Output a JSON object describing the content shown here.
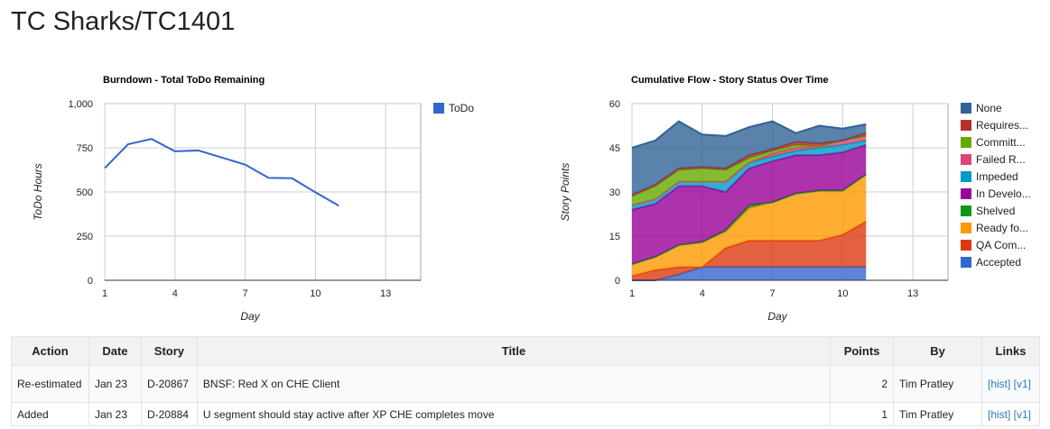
{
  "page": {
    "title": "TC Sharks/TC1401"
  },
  "chart_data": [
    {
      "type": "line",
      "title": "Burndown - Total ToDo Remaining",
      "xlabel": "Day",
      "ylabel": "ToDo Hours",
      "xlim": [
        1,
        14.5
      ],
      "ylim": [
        0,
        1000
      ],
      "xticks": [
        "1",
        "4",
        "7",
        "10",
        "13"
      ],
      "yticks": [
        "0",
        "250",
        "500",
        "750",
        "1,000"
      ],
      "grid": true,
      "legend": "right",
      "series": [
        {
          "name": "ToDo",
          "color": "#3366cc",
          "x": [
            1,
            2,
            3,
            4,
            5,
            6,
            7,
            8,
            9,
            10,
            11
          ],
          "values": [
            635,
            770,
            800,
            730,
            735,
            695,
            655,
            580,
            578,
            498,
            422
          ]
        }
      ]
    },
    {
      "type": "area",
      "stacked": true,
      "title": "Cumulative Flow - Story Status Over Time",
      "xlabel": "Day",
      "ylabel": "Story Points",
      "xlim": [
        1,
        14.5
      ],
      "ylim": [
        0,
        60
      ],
      "xticks": [
        "1",
        "4",
        "7",
        "10",
        "13"
      ],
      "yticks": [
        "0",
        "15",
        "30",
        "45",
        "60"
      ],
      "grid": true,
      "legend": "right",
      "x": [
        1,
        2,
        3,
        4,
        5,
        6,
        7,
        8,
        9,
        10,
        11
      ],
      "series": [
        {
          "name": "Accepted",
          "color": "#3366cc",
          "values": [
            0,
            0,
            2,
            4.5,
            4.5,
            4.5,
            4.5,
            4.5,
            4.5,
            4.5,
            4.5
          ]
        },
        {
          "name": "QA Com...",
          "color": "#dc3912",
          "values": [
            1.5,
            3.5,
            2.5,
            0,
            6.5,
            9,
            9,
            9,
            9,
            11,
            15.5
          ]
        },
        {
          "name": "Ready fo...",
          "color": "#ff9900",
          "values": [
            4,
            4.5,
            7.5,
            8.5,
            5.5,
            11,
            13,
            16,
            17,
            15,
            16
          ]
        },
        {
          "name": "Shelved",
          "color": "#109618",
          "values": [
            0,
            0,
            0,
            0,
            0.5,
            1,
            0,
            0,
            0,
            0,
            0
          ]
        },
        {
          "name": "In Develo...",
          "color": "#990099",
          "values": [
            18.5,
            18,
            20,
            19,
            13,
            12.5,
            14,
            13,
            12,
            13,
            10
          ]
        },
        {
          "name": "Impeded",
          "color": "#0099c6",
          "values": [
            1.5,
            1.5,
            1.5,
            1.5,
            3.5,
            2,
            1.5,
            1.5,
            2.5,
            2.5,
            1.5
          ]
        },
        {
          "name": "Failed R...",
          "color": "#dd4477",
          "values": [
            0,
            0,
            0,
            0,
            0,
            0,
            1,
            1,
            0.5,
            1.5,
            1.5
          ]
        },
        {
          "name": "Committ...",
          "color": "#66aa00",
          "values": [
            3,
            4.5,
            4,
            4.5,
            4,
            1.5,
            1,
            1,
            0,
            0,
            0
          ]
        },
        {
          "name": "Requires...",
          "color": "#b82e2e",
          "values": [
            0.5,
            0.5,
            0.5,
            0.5,
            0.5,
            1,
            0.5,
            1,
            1,
            0,
            1
          ]
        },
        {
          "name": "None",
          "color": "#316395",
          "values": [
            16,
            15,
            16,
            11,
            11,
            9.5,
            9.5,
            3,
            6,
            4,
            3
          ]
        }
      ]
    }
  ],
  "table": {
    "headers": [
      "Action",
      "Date",
      "Story",
      "Title",
      "Points",
      "By",
      "Links"
    ],
    "rows": [
      {
        "action": "Re-estimated",
        "date": "Jan 23",
        "story": "D-20867",
        "title": "BNSF: Red X on CHE Client",
        "points": "2",
        "by": "Tim Pratley",
        "hist": "[hist]",
        "v1": "[v1]"
      },
      {
        "action": "Added",
        "date": "Jan 23",
        "story": "D-20884",
        "title": "U segment should stay active after XP CHE completes move",
        "points": "1",
        "by": "Tim Pratley",
        "hist": "[hist]",
        "v1": "[v1]"
      }
    ]
  }
}
